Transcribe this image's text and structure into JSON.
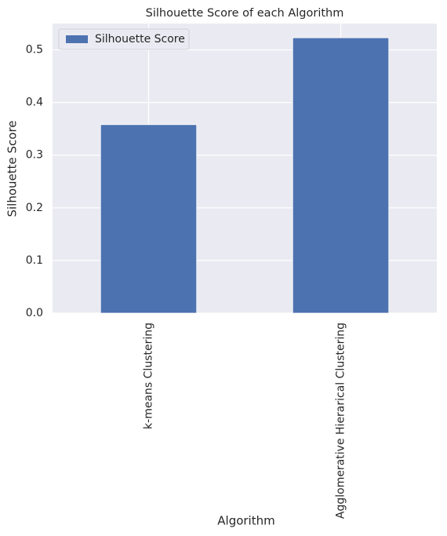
{
  "chart_data": {
    "type": "bar",
    "title": "Silhouette Score of each Algorithm",
    "x_label": "Algorithm",
    "y_label": "Silhouette Score",
    "categories": [
      "k-means Clustering",
      "Agglomerative Hierarical Clustering"
    ],
    "series": [
      {
        "name": "Silhouette Score",
        "color": "#4c72b0",
        "values": [
          0.358,
          0.523
        ]
      }
    ],
    "ylim": [
      0,
      0.55
    ],
    "yticks": [
      {
        "value": 0,
        "label": "0.0"
      },
      {
        "value": 0.1,
        "label": "0.1"
      },
      {
        "value": 0.2,
        "label": "0.2"
      },
      {
        "value": 0.3,
        "label": "0.3"
      },
      {
        "value": 0.4,
        "label": "0.4"
      },
      {
        "value": 0.5,
        "label": "0.5"
      }
    ],
    "grid": true,
    "legend": "upper-left"
  }
}
